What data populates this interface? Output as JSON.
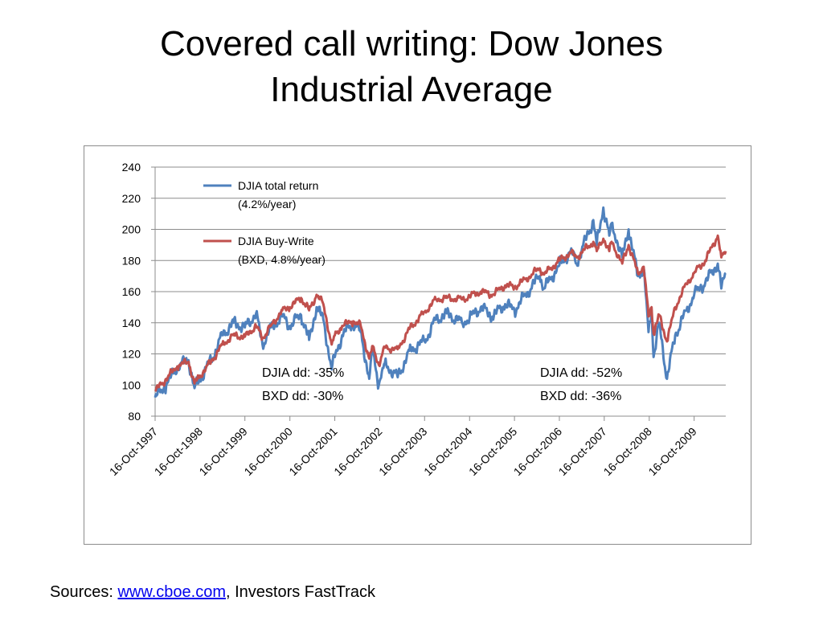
{
  "slide": {
    "title_line1": "Covered call writing: Dow Jones",
    "title_line2": "Industrial Average",
    "sources_prefix": "Sources: ",
    "sources_link": "www.cboe.com",
    "sources_suffix": ", Investors FastTrack"
  },
  "chart_data": {
    "type": "line",
    "title": "",
    "xlabel": "",
    "ylabel": "",
    "ylim": [
      80,
      240
    ],
    "yticks": [
      80,
      100,
      120,
      140,
      160,
      180,
      200,
      220,
      240
    ],
    "xlim": [
      "1997-10-16",
      "2010-06-30"
    ],
    "xtick_labels": [
      "16-Oct-1997",
      "16-Oct-1998",
      "16-Oct-1999",
      "16-Oct-2000",
      "16-Oct-2001",
      "16-Oct-2002",
      "16-Oct-2003",
      "16-Oct-2004",
      "16-Oct-2005",
      "16-Oct-2006",
      "16-Oct-2007",
      "16-Oct-2008",
      "16-Oct-2009"
    ],
    "grid": "horizontal",
    "legend": "top-left",
    "series": [
      {
        "name_line1": "DJIA total return",
        "name_line2": "(4.2%/year)",
        "color": "#4f81bd",
        "points": [
          [
            "1997-10-16",
            92
          ],
          [
            "1998-01-15",
            100
          ],
          [
            "1998-04-15",
            112
          ],
          [
            "1998-07-15",
            116
          ],
          [
            "1998-09-01",
            98
          ],
          [
            "1998-10-16",
            104
          ],
          [
            "1999-01-15",
            116
          ],
          [
            "1999-04-15",
            132
          ],
          [
            "1999-07-15",
            140
          ],
          [
            "1999-10-16",
            137
          ],
          [
            "2000-01-15",
            146
          ],
          [
            "2000-03-07",
            126
          ],
          [
            "2000-05-15",
            137
          ],
          [
            "2000-08-15",
            144
          ],
          [
            "2000-10-16",
            138
          ],
          [
            "2001-01-15",
            145
          ],
          [
            "2001-03-21",
            129
          ],
          [
            "2001-05-21",
            150
          ],
          [
            "2001-07-15",
            142
          ],
          [
            "2001-09-21",
            110
          ],
          [
            "2001-10-16",
            118
          ],
          [
            "2001-12-15",
            132
          ],
          [
            "2002-03-15",
            140
          ],
          [
            "2002-05-15",
            134
          ],
          [
            "2002-07-23",
            104
          ],
          [
            "2002-08-22",
            122
          ],
          [
            "2002-10-09",
            100
          ],
          [
            "2002-11-27",
            114
          ],
          [
            "2003-03-11",
            105
          ],
          [
            "2003-06-15",
            122
          ],
          [
            "2003-10-16",
            128
          ],
          [
            "2004-01-15",
            142
          ],
          [
            "2004-04-15",
            146
          ],
          [
            "2004-08-15",
            140
          ],
          [
            "2004-10-16",
            143
          ],
          [
            "2005-01-15",
            150
          ],
          [
            "2005-04-20",
            144
          ],
          [
            "2005-08-01",
            152
          ],
          [
            "2005-10-16",
            148
          ],
          [
            "2006-01-15",
            158
          ],
          [
            "2006-05-10",
            170
          ],
          [
            "2006-06-14",
            162
          ],
          [
            "2006-10-16",
            177
          ],
          [
            "2007-01-15",
            186
          ],
          [
            "2007-03-05",
            178
          ],
          [
            "2007-07-19",
            206
          ],
          [
            "2007-08-16",
            190
          ],
          [
            "2007-10-09",
            214
          ],
          [
            "2007-11-26",
            196
          ],
          [
            "2007-12-15",
            204
          ],
          [
            "2008-03-10",
            182
          ],
          [
            "2008-05-01",
            200
          ],
          [
            "2008-07-15",
            170
          ],
          [
            "2008-09-01",
            175
          ],
          [
            "2008-10-10",
            134
          ],
          [
            "2008-11-04",
            148
          ],
          [
            "2008-11-20",
            118
          ],
          [
            "2009-01-05",
            140
          ],
          [
            "2009-03-09",
            104
          ],
          [
            "2009-05-15",
            132
          ],
          [
            "2009-08-15",
            148
          ],
          [
            "2009-10-16",
            158
          ],
          [
            "2010-01-15",
            166
          ],
          [
            "2010-04-26",
            178
          ],
          [
            "2010-05-25",
            162
          ],
          [
            "2010-06-30",
            172
          ]
        ]
      },
      {
        "name_line1": "DJIA Buy-Write",
        "name_line2": "(BXD, 4.8%/year)",
        "color": "#c0504d",
        "points": [
          [
            "1997-10-16",
            96
          ],
          [
            "1998-01-15",
            104
          ],
          [
            "1998-04-15",
            112
          ],
          [
            "1998-07-15",
            115
          ],
          [
            "1998-09-01",
            101
          ],
          [
            "1998-10-16",
            106
          ],
          [
            "1999-01-15",
            115
          ],
          [
            "1999-04-15",
            126
          ],
          [
            "1999-07-15",
            132
          ],
          [
            "1999-10-16",
            131
          ],
          [
            "2000-01-15",
            138
          ],
          [
            "2000-03-07",
            130
          ],
          [
            "2000-05-15",
            138
          ],
          [
            "2000-08-15",
            148
          ],
          [
            "2000-10-16",
            150
          ],
          [
            "2001-01-15",
            156
          ],
          [
            "2001-03-21",
            148
          ],
          [
            "2001-05-21",
            158
          ],
          [
            "2001-07-15",
            152
          ],
          [
            "2001-09-21",
            126
          ],
          [
            "2001-10-16",
            132
          ],
          [
            "2001-12-15",
            138
          ],
          [
            "2002-03-15",
            141
          ],
          [
            "2002-05-15",
            138
          ],
          [
            "2002-07-23",
            117
          ],
          [
            "2002-08-22",
            125
          ],
          [
            "2002-10-09",
            113
          ],
          [
            "2002-11-27",
            124
          ],
          [
            "2003-03-11",
            123
          ],
          [
            "2003-06-15",
            136
          ],
          [
            "2003-10-16",
            147
          ],
          [
            "2004-01-15",
            155
          ],
          [
            "2004-04-15",
            156
          ],
          [
            "2004-08-15",
            155
          ],
          [
            "2004-10-16",
            157
          ],
          [
            "2005-01-15",
            160
          ],
          [
            "2005-04-20",
            158
          ],
          [
            "2005-08-01",
            164
          ],
          [
            "2005-10-16",
            163
          ],
          [
            "2006-01-15",
            168
          ],
          [
            "2006-05-10",
            175
          ],
          [
            "2006-06-14",
            171
          ],
          [
            "2006-10-16",
            180
          ],
          [
            "2007-01-15",
            185
          ],
          [
            "2007-03-05",
            182
          ],
          [
            "2007-07-19",
            192
          ],
          [
            "2007-08-16",
            186
          ],
          [
            "2007-10-09",
            194
          ],
          [
            "2007-11-26",
            186
          ],
          [
            "2007-12-15",
            192
          ],
          [
            "2008-03-10",
            178
          ],
          [
            "2008-05-01",
            190
          ],
          [
            "2008-07-15",
            172
          ],
          [
            "2008-09-01",
            176
          ],
          [
            "2008-10-10",
            144
          ],
          [
            "2008-11-04",
            150
          ],
          [
            "2008-11-20",
            133
          ],
          [
            "2009-01-05",
            145
          ],
          [
            "2009-03-09",
            128
          ],
          [
            "2009-05-15",
            150
          ],
          [
            "2009-08-15",
            165
          ],
          [
            "2009-10-16",
            172
          ],
          [
            "2010-01-15",
            180
          ],
          [
            "2010-04-26",
            196
          ],
          [
            "2010-05-25",
            182
          ],
          [
            "2010-06-30",
            186
          ]
        ]
      }
    ],
    "annotations": [
      {
        "line1": "DJIA dd: -35%",
        "line2": "BXD dd: -30%"
      },
      {
        "line1": "DJIA dd: -52%",
        "line2": "BXD dd: -36%"
      }
    ]
  }
}
